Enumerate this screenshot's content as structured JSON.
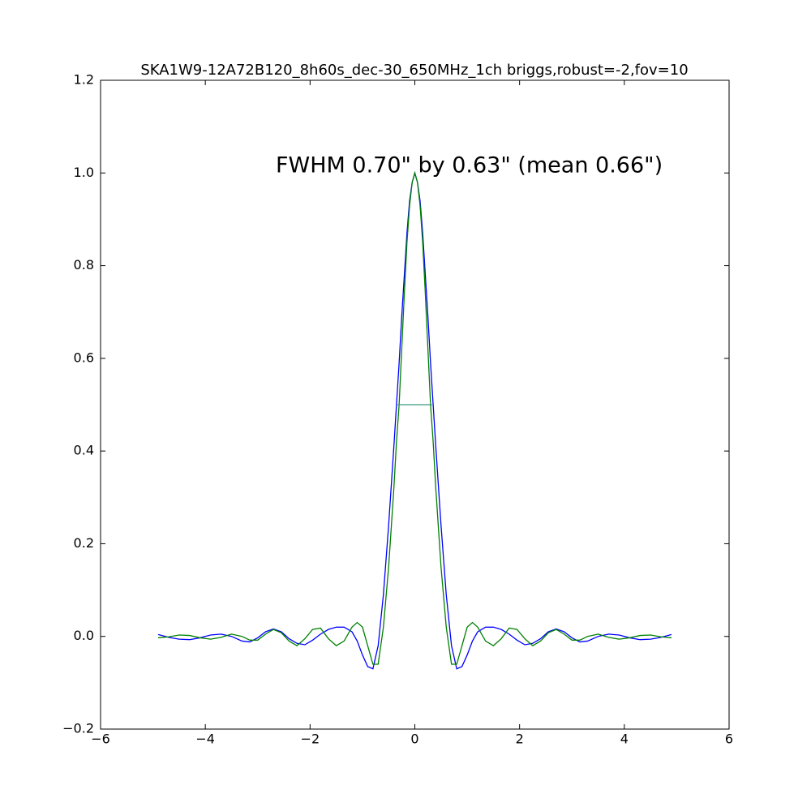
{
  "chart_data": {
    "type": "line",
    "title": "SKA1W9-12A72B120_8h60s_dec-30_650MHz_1ch briggs,robust=-2,fov=10",
    "annotation": "FWHM 0.70\" by 0.63\" (mean 0.66\")",
    "x": [
      -4.9,
      -4.7,
      -4.5,
      -4.3,
      -4.1,
      -3.9,
      -3.7,
      -3.5,
      -3.3,
      -3.15,
      -3.0,
      -2.85,
      -2.7,
      -2.55,
      -2.4,
      -2.25,
      -2.1,
      -1.95,
      -1.8,
      -1.65,
      -1.5,
      -1.35,
      -1.2,
      -1.1,
      -1.0,
      -0.9,
      -0.8,
      -0.7,
      -0.6,
      -0.5,
      -0.4,
      -0.35,
      -0.3,
      -0.25,
      -0.2,
      -0.15,
      -0.1,
      -0.05,
      0,
      0.05,
      0.1,
      0.15,
      0.2,
      0.25,
      0.3,
      0.35,
      0.4,
      0.5,
      0.6,
      0.7,
      0.8,
      0.9,
      1.0,
      1.1,
      1.2,
      1.35,
      1.5,
      1.65,
      1.8,
      1.95,
      2.1,
      2.25,
      2.4,
      2.55,
      2.7,
      2.85,
      3.0,
      3.15,
      3.3,
      3.5,
      3.7,
      3.9,
      4.1,
      4.3,
      4.5,
      4.7,
      4.9
    ],
    "series": [
      {
        "color": "#0000ff",
        "values": [
          0.004,
          -0.002,
          -0.006,
          -0.007,
          -0.003,
          0.003,
          0.005,
          0.0,
          -0.01,
          -0.012,
          -0.003,
          0.01,
          0.016,
          0.01,
          -0.005,
          -0.015,
          -0.018,
          -0.008,
          0.005,
          0.015,
          0.02,
          0.02,
          0.01,
          -0.01,
          -0.04,
          -0.065,
          -0.07,
          -0.02,
          0.09,
          0.24,
          0.41,
          0.5,
          0.59,
          0.69,
          0.78,
          0.87,
          0.94,
          0.98,
          1.0,
          0.98,
          0.94,
          0.87,
          0.78,
          0.69,
          0.59,
          0.5,
          0.41,
          0.24,
          0.09,
          -0.02,
          -0.07,
          -0.065,
          -0.04,
          -0.01,
          0.01,
          0.02,
          0.02,
          0.015,
          0.005,
          -0.008,
          -0.018,
          -0.015,
          -0.005,
          0.01,
          0.016,
          0.01,
          -0.003,
          -0.012,
          -0.01,
          0.0,
          0.005,
          0.003,
          -0.003,
          -0.007,
          -0.006,
          -0.002,
          0.004
        ]
      },
      {
        "color": "#008000",
        "values": [
          -0.003,
          -0.001,
          0.003,
          0.002,
          -0.003,
          -0.006,
          -0.002,
          0.005,
          0.0,
          -0.008,
          -0.008,
          0.005,
          0.015,
          0.008,
          -0.01,
          -0.02,
          -0.005,
          0.015,
          0.018,
          -0.005,
          -0.02,
          -0.01,
          0.02,
          0.03,
          0.02,
          -0.02,
          -0.06,
          -0.06,
          0.02,
          0.15,
          0.32,
          0.42,
          0.5,
          0.62,
          0.74,
          0.85,
          0.93,
          0.98,
          1.0,
          0.98,
          0.93,
          0.85,
          0.74,
          0.62,
          0.5,
          0.42,
          0.32,
          0.15,
          0.02,
          -0.06,
          -0.06,
          -0.02,
          0.02,
          0.03,
          0.02,
          -0.01,
          -0.02,
          -0.005,
          0.018,
          0.015,
          -0.005,
          -0.02,
          -0.01,
          0.008,
          0.015,
          0.005,
          -0.008,
          -0.008,
          0.0,
          0.005,
          -0.002,
          -0.006,
          -0.003,
          0.002,
          0.003,
          -0.001,
          -0.003
        ]
      }
    ],
    "fwhm_line": {
      "x": [
        -0.33,
        0.33
      ],
      "values": [
        0.5,
        0.5
      ],
      "color": "#3a9a80"
    },
    "xlim": [
      -6,
      6
    ],
    "xticks": [
      {
        "value": -6,
        "label": "−6"
      },
      {
        "value": -4,
        "label": "−4"
      },
      {
        "value": -2,
        "label": "−2"
      },
      0,
      2,
      4,
      6
    ],
    "ylim": [
      -0.2,
      1.2
    ],
    "yticks": [
      {
        "value": -0.2,
        "label": "−0.2"
      },
      {
        "value": 0,
        "label": "0.0"
      },
      0.2,
      0.4,
      0.6,
      0.8,
      {
        "value": 1,
        "label": "1.0"
      },
      1.2
    ],
    "grid": false
  }
}
